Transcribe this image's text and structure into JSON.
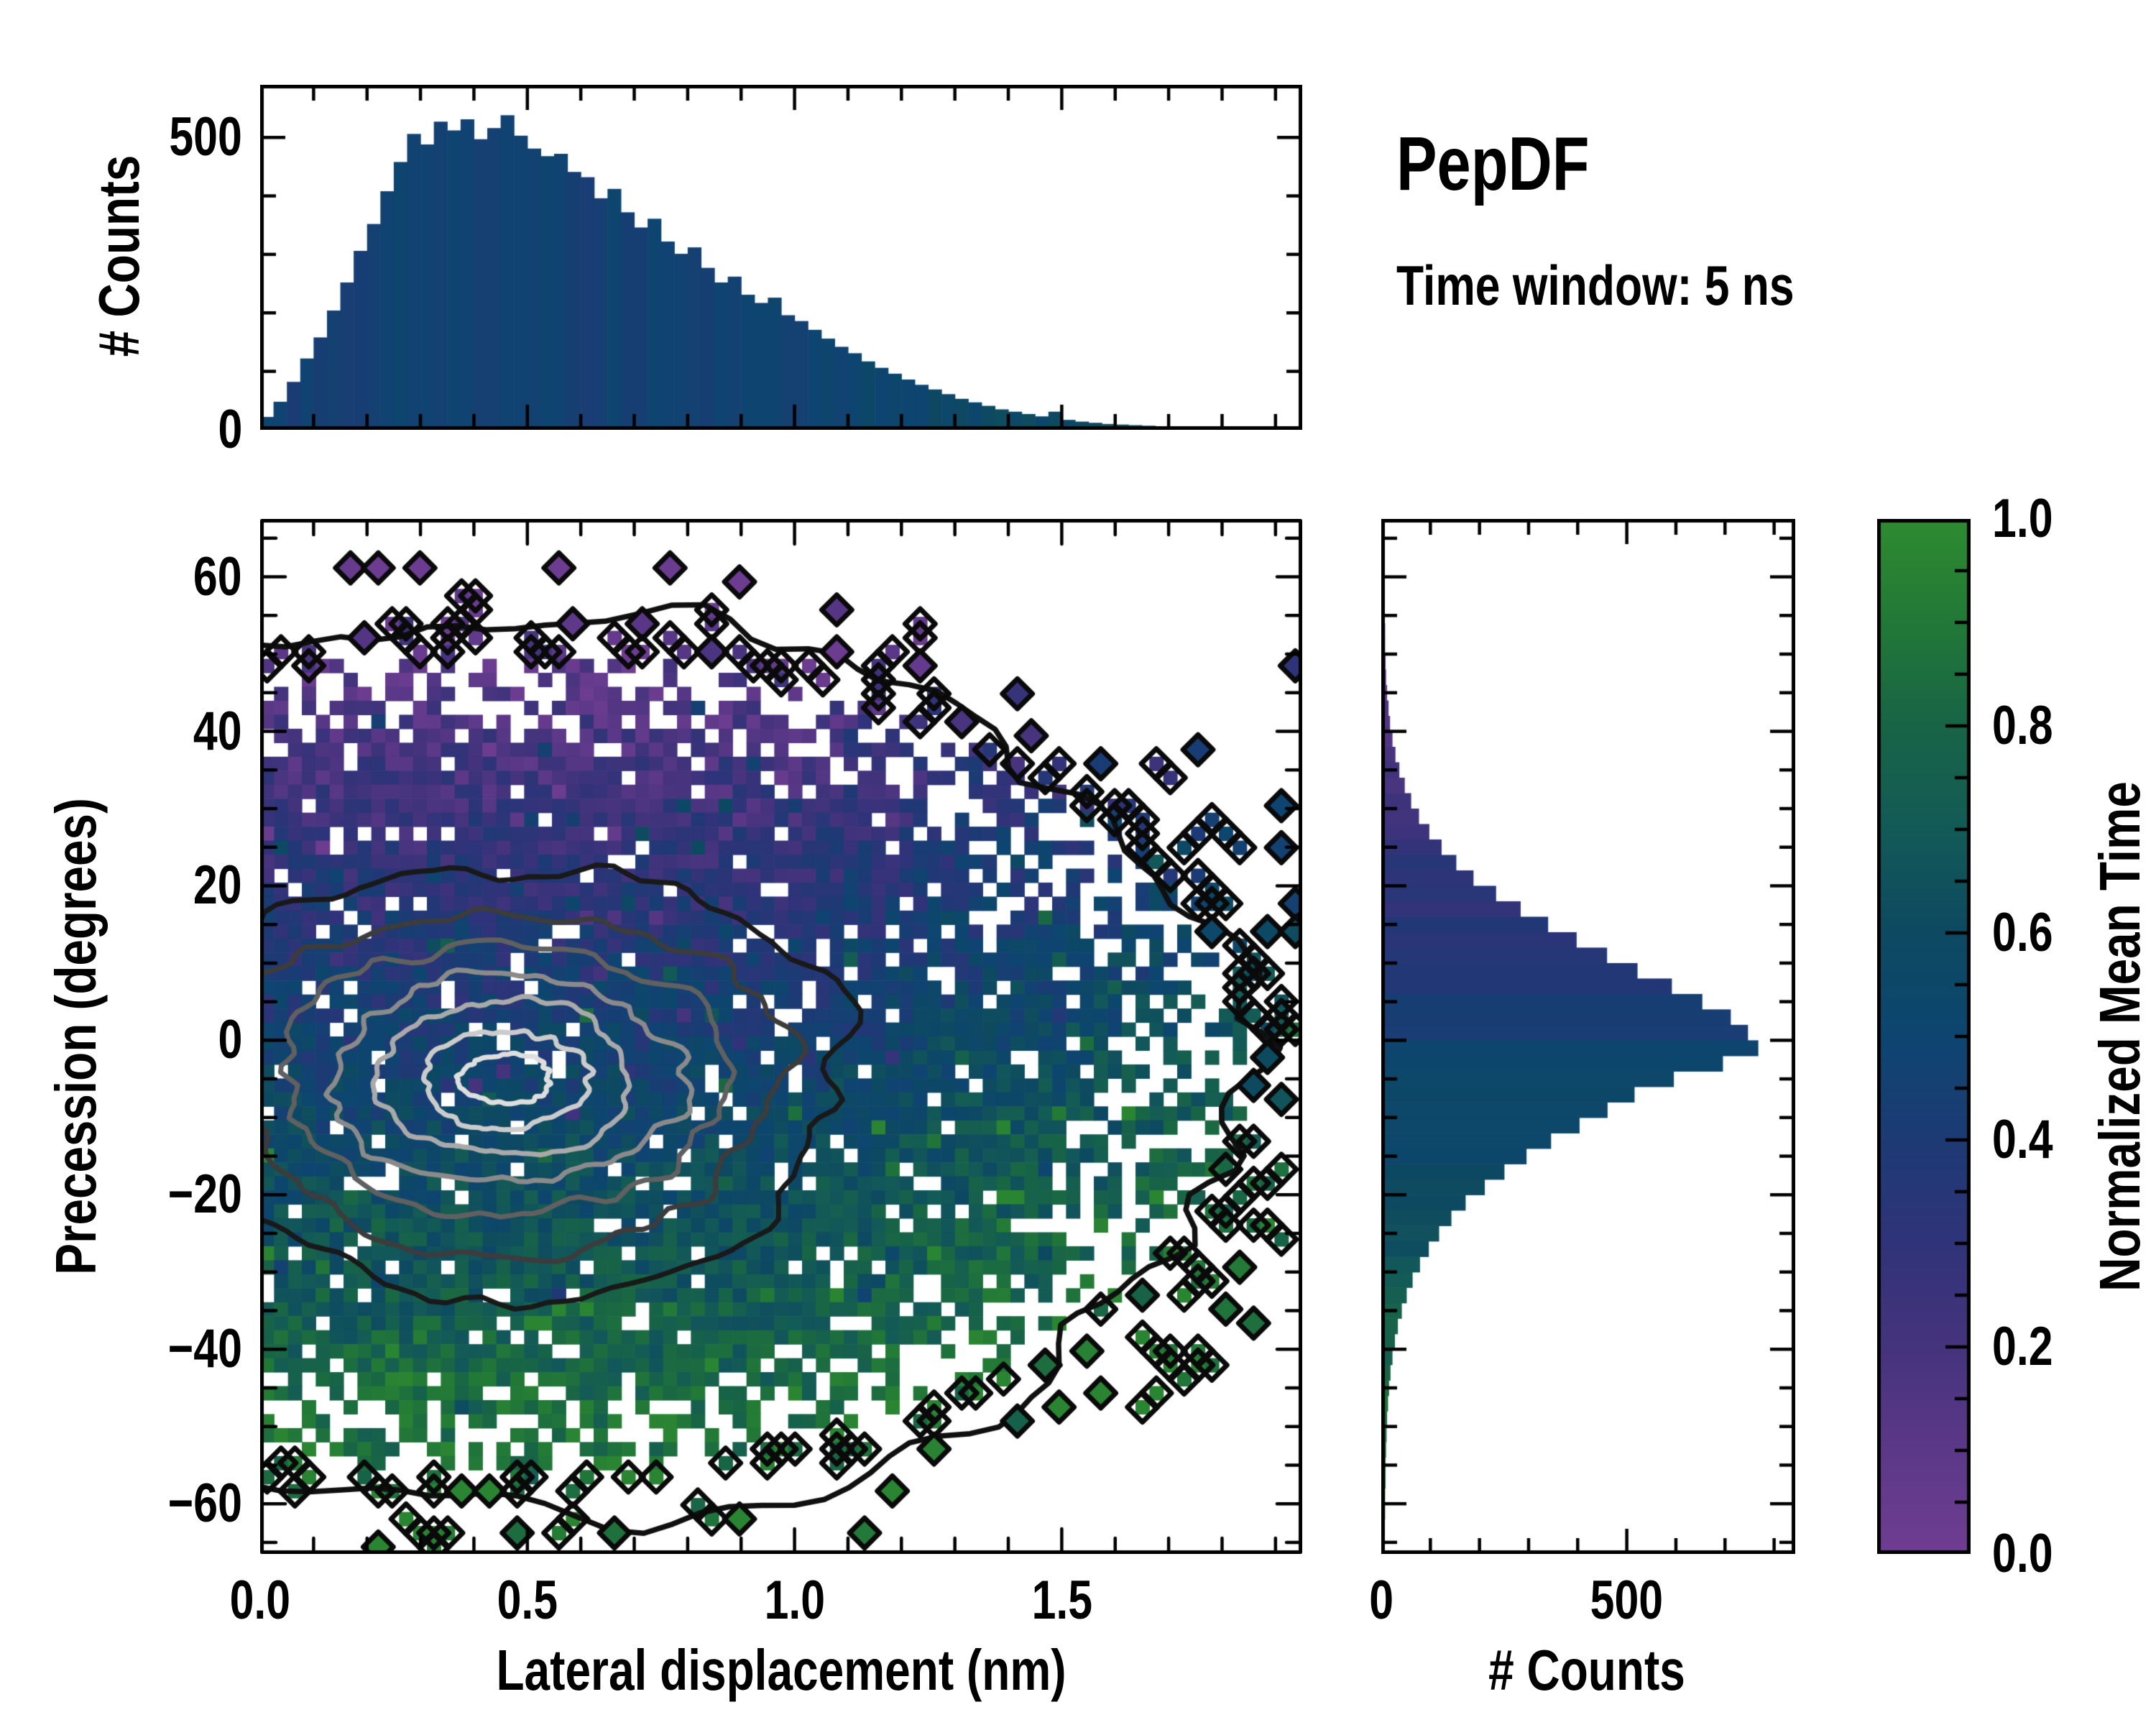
{
  "figure": {
    "title": "PepDF",
    "subtitle": "Time window: 5 ns",
    "background_color": "#ffffff",
    "text_color": "#000000",
    "spine_color": "#000000"
  },
  "chart_data": [
    {
      "id": "top_marginal",
      "type": "bar",
      "orientation": "vertical",
      "ylabel": "# Counts",
      "xlim": [
        0,
        1.95
      ],
      "ylim": [
        0,
        590
      ],
      "ytick_values": [
        0,
        500
      ],
      "ytick_labels": [
        "0",
        "500"
      ],
      "y_minor_step": 100,
      "x_major_values": [
        0,
        0.5,
        1.0,
        1.5
      ],
      "x_minor_step": 0.1,
      "bin_start": 0,
      "bin_width": 0.025,
      "counts": [
        22,
        48,
        82,
        122,
        158,
        204,
        252,
        306,
        352,
        408,
        458,
        506,
        488,
        527,
        512,
        531,
        497,
        516,
        538,
        503,
        481,
        468,
        472,
        441,
        432,
        396,
        412,
        372,
        346,
        361,
        322,
        301,
        312,
        277,
        252,
        262,
        231,
        217,
        226,
        196,
        186,
        171,
        156,
        142,
        131,
        117,
        106,
        96,
        86,
        77,
        69,
        61,
        53,
        47,
        41,
        35,
        31,
        27,
        23,
        31,
        17,
        14,
        12,
        10,
        9,
        8,
        7,
        6,
        5,
        4,
        4,
        3,
        3,
        2,
        2,
        2,
        1,
        1
      ],
      "bar_color_model": {
        "base": 0.46,
        "x_gain": 0.2,
        "x_knee": 0.85,
        "jitter": 0.05,
        "green_spike_prob": 0.03,
        "green_spike_add": 0.22
      }
    },
    {
      "id": "main_heatmap",
      "type": "heatmap",
      "xlabel": "Lateral displacement (nm)",
      "ylabel": "Precession (degrees)",
      "value_label": "Normalized Mean Time",
      "xlim": [
        0,
        1.95
      ],
      "ylim": [
        -66.5,
        67.5
      ],
      "xtick_values": [
        0,
        0.5,
        1.0,
        1.5
      ],
      "xtick_labels": [
        "0.0",
        "0.5",
        "1.0",
        "1.5"
      ],
      "x_minor_step": 0.1,
      "ytick_values": [
        60,
        40,
        20,
        0,
        -20,
        -40,
        -60
      ],
      "ytick_labels": [
        "60",
        "40",
        "20",
        "0",
        "−20",
        "−40",
        "−60"
      ],
      "y_minor_step": 5,
      "grid": {
        "nx": 75,
        "ny": 74
      },
      "footprint_estimated": {
        "cx": 0.45,
        "cy": -3,
        "rx": 1.47,
        "ry": 56
      },
      "occupancy_model": {
        "core_r": 0.72,
        "core_p": 0.97,
        "edge_r": 1.0,
        "edge_p": 0.25,
        "halo_r": 1.18,
        "halo_p": 0.16,
        "far_p": 0.004,
        "hole_core": 0.05,
        "hole_edge": 0.13
      },
      "value_model": {
        "base": 0.47,
        "y_slope": -0.0075,
        "x_gain": 0.22,
        "x_knee": 0.95,
        "noise": 0.12,
        "sprinkle_prob": 0.08,
        "sprinkle_amp": 0.3
      },
      "contours": {
        "center": [
          0.46,
          -5
        ],
        "boundary": {
          "color": "#101010",
          "cx": 0.45,
          "cy": -3,
          "rx": 1.448,
          "ry": 55.2,
          "amp": 0.075,
          "width": 7.5
        },
        "levels": [
          {
            "color": "#191919",
            "rx": 0.63,
            "ry": 28.0
          },
          {
            "color": "#3c3c3c",
            "rx": 0.52,
            "ry": 22.0
          },
          {
            "color": "#606060",
            "rx": 0.415,
            "ry": 17.5
          },
          {
            "color": "#8a8a8a",
            "rx": 0.325,
            "ry": 13.5
          },
          {
            "color": "#a9a9a9",
            "rx": 0.24,
            "ry": 10.0
          },
          {
            "color": "#cbcbcb",
            "rx": 0.155,
            "ry": 6.3
          },
          {
            "color": "#dedede",
            "rx": 0.085,
            "ry": 3.2
          }
        ],
        "level_width": 7
      },
      "empty_cell_color": "#ffffff"
    },
    {
      "id": "right_marginal",
      "type": "bar",
      "orientation": "horizontal",
      "xlabel": "# Counts",
      "xlim": [
        0,
        843
      ],
      "xtick_values": [
        0,
        500
      ],
      "xtick_labels": [
        "0",
        "500"
      ],
      "x_minor_step": 100,
      "ylim": [
        -66.5,
        67.5
      ],
      "y_major_step": 20,
      "y_minor_step": 5,
      "bin_start": -68,
      "bin_width": 2,
      "counts": [
        0,
        1,
        1,
        2,
        2,
        3,
        3,
        4,
        5,
        6,
        8,
        10,
        13,
        17,
        22,
        28,
        36,
        46,
        58,
        73,
        91,
        112,
        137,
        166,
        205,
        245,
        290,
        340,
        398,
        455,
        510,
        590,
        690,
        762,
        741,
        706,
        648,
        586,
        516,
        454,
        392,
        334,
        278,
        228,
        182,
        147,
        117,
        92,
        71,
        55,
        42,
        31,
        23,
        17,
        12,
        9,
        6,
        4,
        3,
        2,
        2,
        1,
        1,
        0,
        0,
        0,
        0,
        0
      ],
      "bar_color_model": {
        "base": 0.47,
        "y_slope": -0.0075,
        "jitter": 0.05
      }
    },
    {
      "id": "colorbar",
      "type": "colorbar",
      "label": "Normalized Mean Time",
      "range": [
        0,
        1
      ],
      "tick_values": [
        0.0,
        0.2,
        0.4,
        0.6,
        0.8,
        1.0
      ],
      "tick_labels": [
        "0.0",
        "0.2",
        "0.4",
        "0.6",
        "0.8",
        "1.0"
      ],
      "minor_step": 0.05,
      "stops": [
        {
          "t": 0.0,
          "color": "#6f3d92"
        },
        {
          "t": 0.1,
          "color": "#5c3888"
        },
        {
          "t": 0.2,
          "color": "#45337d"
        },
        {
          "t": 0.3,
          "color": "#303379"
        },
        {
          "t": 0.4,
          "color": "#1d3a75"
        },
        {
          "t": 0.5,
          "color": "#0d4570"
        },
        {
          "t": 0.6,
          "color": "#0d4961"
        },
        {
          "t": 0.7,
          "color": "#135a57"
        },
        {
          "t": 0.8,
          "color": "#186446"
        },
        {
          "t": 0.9,
          "color": "#227837"
        },
        {
          "t": 1.0,
          "color": "#2e8b30"
        }
      ]
    }
  ]
}
